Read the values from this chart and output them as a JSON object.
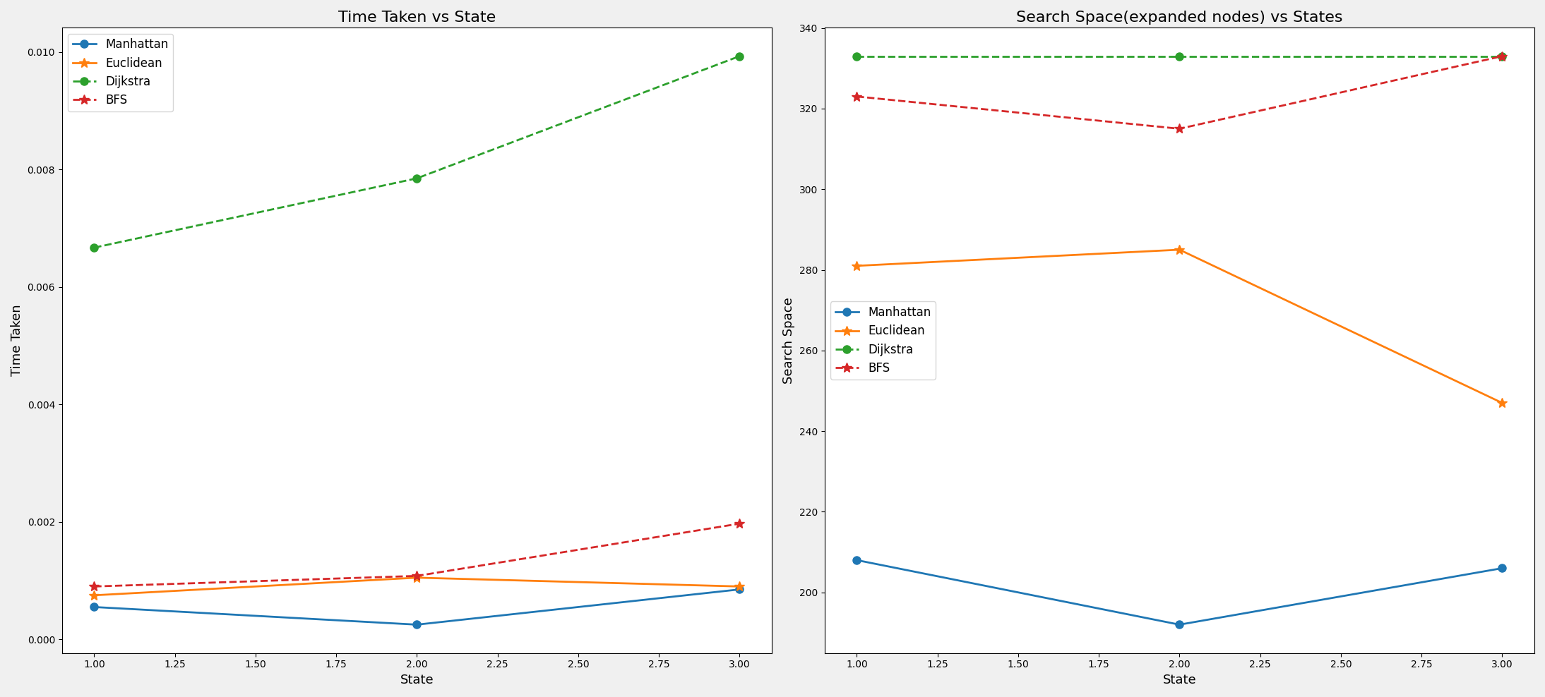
{
  "states": [
    1,
    2,
    3
  ],
  "time_manhattan": [
    0.00055,
    0.00025,
    0.00085
  ],
  "time_euclidean": [
    0.00075,
    0.00105,
    0.0009
  ],
  "time_dijkstra": [
    0.00667,
    0.00785,
    0.00993
  ],
  "time_bfs": [
    0.0009,
    0.00108,
    0.00197
  ],
  "space_manhattan": [
    208,
    192,
    206
  ],
  "space_euclidean": [
    281,
    285,
    247
  ],
  "space_dijkstra": [
    333,
    333,
    333
  ],
  "space_bfs": [
    323,
    315,
    333
  ],
  "title_left": "Time Taken vs State",
  "title_right": "Search Space(expanded nodes) vs States",
  "xlabel": "State",
  "ylabel_left": "Time Taken",
  "ylabel_right": "Search Space",
  "color_manhattan": "#1f77b4",
  "color_euclidean": "#ff7f0e",
  "color_dijkstra": "#2ca02c",
  "color_bfs": "#d62728",
  "bg_color": "#f0f0f0",
  "figsize": [
    21.88,
    9.88
  ],
  "dpi": 100
}
